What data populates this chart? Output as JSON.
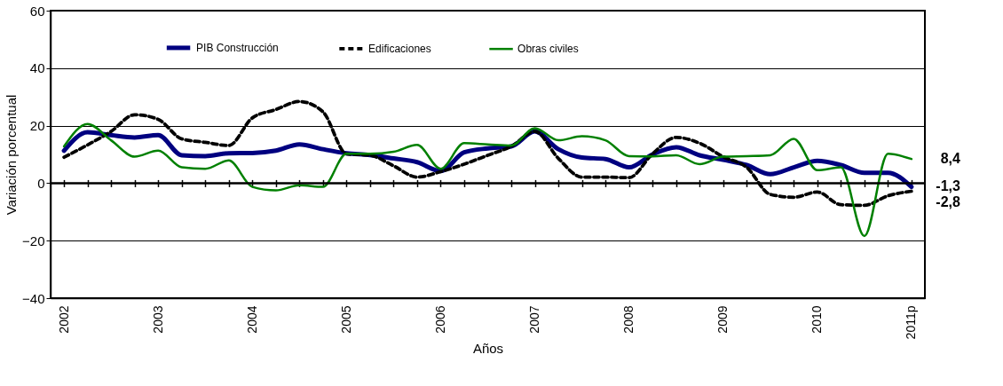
{
  "chart_data": {
    "type": "line",
    "xlabel": "Años",
    "ylabel": "Variación porcentual",
    "categories": [
      "2002",
      null,
      null,
      null,
      "2003",
      null,
      null,
      null,
      "2004",
      null,
      null,
      null,
      "2005",
      null,
      null,
      null,
      "2006",
      null,
      null,
      null,
      "2007",
      null,
      null,
      null,
      "2008",
      null,
      null,
      null,
      "2009",
      null,
      null,
      null,
      "2010",
      null,
      null,
      null,
      "2011p"
    ],
    "series": [
      {
        "name": "PIB Construcción",
        "color": "#000080",
        "line_style": "solid",
        "values": [
          11.3,
          17.7,
          16.7,
          15.9,
          16.7,
          9.7,
          9.4,
          10.4,
          10.5,
          11.3,
          13.5,
          11.8,
          10.4,
          9.8,
          8.6,
          7.3,
          4.2,
          10.7,
          12.1,
          12.8,
          18.0,
          11.8,
          8.9,
          8.4,
          5.5,
          10.0,
          12.5,
          9.7,
          8.1,
          6.3,
          3.1,
          5.5,
          7.8,
          6.3,
          3.6,
          3.6,
          -1.3
        ]
      },
      {
        "name": "Edificaciones",
        "color": "#000000",
        "line_style": "dashed",
        "values": [
          9.0,
          13.3,
          18.0,
          23.8,
          22.2,
          15.4,
          14.2,
          13.1,
          22.7,
          25.6,
          28.4,
          24.8,
          10.2,
          9.7,
          6.0,
          2.1,
          4.0,
          6.6,
          9.7,
          12.8,
          18.0,
          8.6,
          2.1,
          2.1,
          1.9,
          10.2,
          15.9,
          13.9,
          9.2,
          5.5,
          -3.9,
          -4.9,
          -3.1,
          -7.5,
          -7.7,
          -4.4,
          -2.8
        ]
      },
      {
        "name": "Obras civiles",
        "color": "#008000",
        "line_style": "solid",
        "values": [
          12.8,
          20.6,
          14.9,
          9.2,
          11.3,
          5.5,
          5.0,
          7.9,
          -1.3,
          -2.5,
          -0.7,
          -1.3,
          10.2,
          10.2,
          10.9,
          13.3,
          5.0,
          13.9,
          13.5,
          13.1,
          19.1,
          14.9,
          16.3,
          14.9,
          9.4,
          9.3,
          9.7,
          6.6,
          9.2,
          9.4,
          9.7,
          15.4,
          4.5,
          5.5,
          -18.4,
          10.2,
          8.4
        ]
      }
    ],
    "ylim": [
      -40,
      60
    ],
    "yticks": [
      -40,
      -20,
      0,
      20,
      40,
      60
    ],
    "grid": "y",
    "legend": "top",
    "annotations": [
      {
        "text": "8,4",
        "x": "2011p",
        "y": 8.4
      },
      {
        "text": "-1,3",
        "x": "2011p",
        "y": -1.3
      },
      {
        "text": "-2,8",
        "x": "2011p",
        "y": -2.8
      }
    ]
  }
}
